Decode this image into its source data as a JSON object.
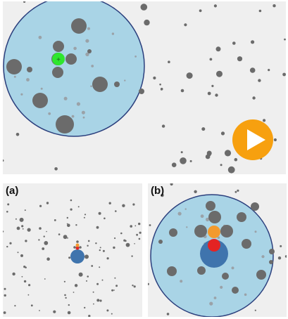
{
  "panels": {
    "a_label": "(a)",
    "b_label": "(b)"
  },
  "icons": {
    "play": "play-icon",
    "player": "player-cell"
  },
  "colors": {
    "background": "#efefef",
    "bubble_fill": "#a9d4e6",
    "bubble_stroke": "#2b3f7d",
    "particle": "#6b6b6b",
    "particle_faint": "#9aa2a8",
    "player_green": "#2ee62e",
    "player_blue": "#3f74ad",
    "player_orange": "#f39a2d",
    "player_red": "#e42323",
    "play_button": "#f7a00f"
  }
}
